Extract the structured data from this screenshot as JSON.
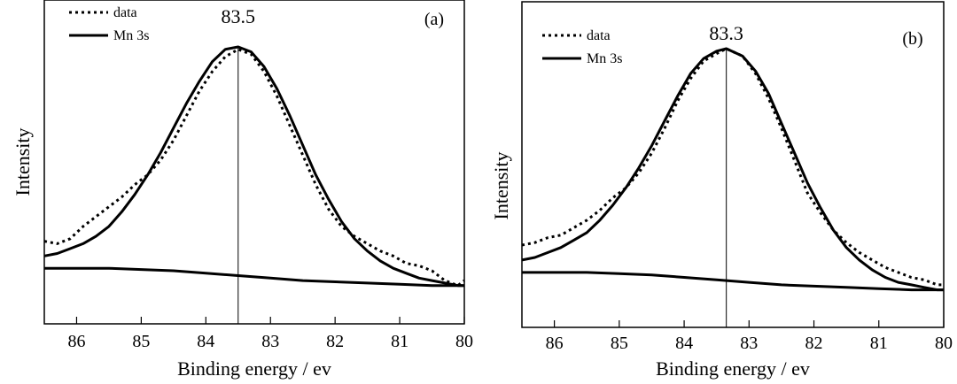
{
  "chart_data": [
    {
      "type": "line",
      "panel_label": "(a)",
      "xlabel": "Binding energy / ev",
      "ylabel": "Intensity",
      "xlim": [
        86.5,
        80
      ],
      "ylim": [
        0,
        1.0
      ],
      "x_ticks": [
        86,
        85,
        84,
        83,
        82,
        81,
        80
      ],
      "x_tick_labels": [
        "86",
        "85",
        "84",
        "83",
        "82",
        "81",
        "80"
      ],
      "legend": {
        "placement": "top-left",
        "entries": [
          {
            "label": "data",
            "style": "dotted"
          },
          {
            "label": "Mn 3s",
            "style": "solid"
          }
        ]
      },
      "peak": {
        "x": 83.5,
        "label": "83.5"
      },
      "series": [
        {
          "name": "data",
          "style": "dotted",
          "x": [
            86.5,
            86.3,
            86.1,
            85.9,
            85.7,
            85.5,
            85.3,
            85.1,
            84.9,
            84.7,
            84.5,
            84.3,
            84.1,
            83.9,
            83.7,
            83.5,
            83.3,
            83.1,
            82.9,
            82.7,
            82.5,
            82.3,
            82.1,
            81.9,
            81.7,
            81.5,
            81.3,
            81.1,
            80.9,
            80.7,
            80.5,
            80.3,
            80.1,
            80.0
          ],
          "y": [
            0.21,
            0.2,
            0.22,
            0.27,
            0.31,
            0.35,
            0.39,
            0.44,
            0.48,
            0.54,
            0.62,
            0.72,
            0.82,
            0.9,
            0.96,
            0.99,
            0.97,
            0.9,
            0.8,
            0.68,
            0.56,
            0.44,
            0.34,
            0.27,
            0.23,
            0.2,
            0.17,
            0.15,
            0.12,
            0.11,
            0.09,
            0.05,
            0.03,
            0.05
          ]
        },
        {
          "name": "Mn 3s",
          "style": "solid",
          "x": [
            86.5,
            86.3,
            86.1,
            85.9,
            85.7,
            85.5,
            85.3,
            85.1,
            84.9,
            84.7,
            84.5,
            84.3,
            84.1,
            83.9,
            83.7,
            83.5,
            83.3,
            83.1,
            82.9,
            82.7,
            82.5,
            82.3,
            82.1,
            81.9,
            81.7,
            81.5,
            81.3,
            81.1,
            80.9,
            80.7,
            80.5,
            80.3,
            80.1,
            80.0
          ],
          "y": [
            0.15,
            0.16,
            0.18,
            0.2,
            0.23,
            0.27,
            0.33,
            0.4,
            0.48,
            0.57,
            0.67,
            0.77,
            0.86,
            0.94,
            0.99,
            1.0,
            0.98,
            0.92,
            0.83,
            0.72,
            0.6,
            0.48,
            0.38,
            0.29,
            0.22,
            0.17,
            0.13,
            0.1,
            0.08,
            0.06,
            0.05,
            0.04,
            0.03,
            0.03
          ]
        },
        {
          "name": "",
          "style": "solid",
          "x": [
            86.5,
            86.0,
            85.5,
            85.0,
            84.5,
            84.0,
            83.5,
            83.0,
            82.5,
            82.0,
            81.5,
            81.0,
            80.5,
            80.0
          ],
          "y": [
            0.1,
            0.1,
            0.1,
            0.095,
            0.09,
            0.08,
            0.07,
            0.06,
            0.05,
            0.045,
            0.04,
            0.035,
            0.03,
            0.03
          ]
        }
      ]
    },
    {
      "type": "line",
      "panel_label": "(b)",
      "xlabel": "Binding energy / ev",
      "ylabel": "Intensity",
      "xlim": [
        86.5,
        80
      ],
      "ylim": [
        0,
        1.0
      ],
      "x_ticks": [
        86,
        85,
        84,
        83,
        82,
        81,
        80
      ],
      "x_tick_labels": [
        "86",
        "85",
        "84",
        "83",
        "82",
        "81",
        "80"
      ],
      "legend": {
        "placement": "top-left",
        "entries": [
          {
            "label": "data",
            "style": "dotted"
          },
          {
            "label": "Mn 3s",
            "style": "solid"
          }
        ]
      },
      "peak": {
        "x": 83.35,
        "label": "83.3"
      },
      "series": [
        {
          "name": "data",
          "style": "dotted",
          "x": [
            86.5,
            86.3,
            86.1,
            85.9,
            85.7,
            85.5,
            85.3,
            85.1,
            84.9,
            84.7,
            84.5,
            84.3,
            84.1,
            83.9,
            83.7,
            83.5,
            83.35,
            83.1,
            82.9,
            82.7,
            82.5,
            82.3,
            82.1,
            81.9,
            81.7,
            81.5,
            81.3,
            81.1,
            80.9,
            80.7,
            80.5,
            80.3,
            80.1,
            80.0
          ],
          "y": [
            0.21,
            0.22,
            0.24,
            0.25,
            0.28,
            0.31,
            0.35,
            0.4,
            0.44,
            0.5,
            0.58,
            0.68,
            0.79,
            0.88,
            0.95,
            0.98,
            1.0,
            0.97,
            0.9,
            0.8,
            0.68,
            0.55,
            0.42,
            0.34,
            0.27,
            0.22,
            0.18,
            0.15,
            0.12,
            0.1,
            0.08,
            0.07,
            0.05,
            0.05
          ]
        },
        {
          "name": "Mn 3s",
          "style": "solid",
          "x": [
            86.5,
            86.3,
            86.1,
            85.9,
            85.7,
            85.5,
            85.3,
            85.1,
            84.9,
            84.7,
            84.5,
            84.3,
            84.1,
            83.9,
            83.7,
            83.5,
            83.35,
            83.1,
            82.9,
            82.7,
            82.5,
            82.3,
            82.1,
            81.9,
            81.7,
            81.5,
            81.3,
            81.1,
            80.9,
            80.7,
            80.5,
            80.3,
            80.1,
            80.0
          ],
          "y": [
            0.15,
            0.16,
            0.18,
            0.2,
            0.23,
            0.26,
            0.31,
            0.37,
            0.44,
            0.52,
            0.61,
            0.71,
            0.81,
            0.9,
            0.96,
            0.99,
            1.0,
            0.97,
            0.91,
            0.82,
            0.7,
            0.58,
            0.46,
            0.36,
            0.27,
            0.2,
            0.15,
            0.11,
            0.08,
            0.06,
            0.05,
            0.04,
            0.03,
            0.03
          ]
        },
        {
          "name": "",
          "style": "solid",
          "x": [
            86.5,
            86.0,
            85.5,
            85.0,
            84.5,
            84.0,
            83.5,
            83.0,
            82.5,
            82.0,
            81.5,
            81.0,
            80.5,
            80.0
          ],
          "y": [
            0.1,
            0.1,
            0.1,
            0.095,
            0.09,
            0.08,
            0.07,
            0.06,
            0.05,
            0.045,
            0.04,
            0.035,
            0.03,
            0.03
          ]
        }
      ]
    }
  ]
}
